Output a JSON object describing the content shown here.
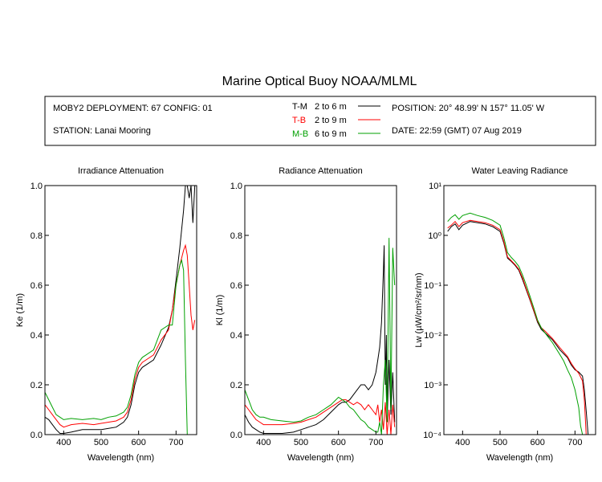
{
  "title": "Marine Optical Buoy NOAA/MLML",
  "info": {
    "deployment": "MOBY2 DEPLOYMENT: 67 CONFIG: 01",
    "station": "STATION: Lanai Mooring",
    "position": "POSITION: 20° 48.99' N   157° 11.05' W",
    "date": "DATE: 22:59 (GMT) 07 Aug 2019"
  },
  "legend": [
    {
      "key": "T-M",
      "range": "2 to 6  m",
      "color": "#000000"
    },
    {
      "key": "T-B",
      "range": "2 to 9  m",
      "color": "#ff0000"
    },
    {
      "key": "M-B",
      "range": "6 to 9  m",
      "color": "#00a000"
    }
  ],
  "chart_data": [
    {
      "type": "line",
      "title": "Irradiance Attenuation",
      "xlabel": "Wavelength (nm)",
      "ylabel": "Ke  (1/m)",
      "xlim": [
        350,
        755
      ],
      "ylim": [
        0,
        1
      ],
      "xticks": [
        400,
        500,
        600,
        700
      ],
      "yticks": [
        0,
        0.2,
        0.4,
        0.6,
        0.8,
        1.0
      ],
      "yticklabels": [
        "0.0",
        "0.2",
        "0.4",
        "0.6",
        "0.8",
        "1.0"
      ],
      "series": [
        {
          "name": "T-M",
          "color": "#000000",
          "x": [
            350,
            360,
            370,
            380,
            390,
            400,
            420,
            450,
            480,
            500,
            520,
            540,
            560,
            570,
            580,
            590,
            600,
            610,
            620,
            640,
            660,
            680,
            690,
            700,
            710,
            720,
            725,
            730,
            735,
            740,
            745,
            750
          ],
          "y": [
            0.07,
            0.06,
            0.04,
            0.02,
            0.005,
            0.005,
            0.01,
            0.02,
            0.02,
            0.02,
            0.025,
            0.03,
            0.05,
            0.07,
            0.12,
            0.2,
            0.25,
            0.27,
            0.28,
            0.3,
            0.36,
            0.43,
            0.5,
            0.62,
            0.75,
            0.9,
            1.0,
            1.0,
            0.95,
            1.0,
            0.85,
            1.0
          ]
        },
        {
          "name": "T-B",
          "color": "#ff0000",
          "x": [
            350,
            360,
            370,
            380,
            390,
            400,
            420,
            450,
            480,
            500,
            520,
            540,
            560,
            570,
            580,
            590,
            600,
            610,
            620,
            640,
            660,
            680,
            690,
            700,
            710,
            720,
            725,
            730,
            735,
            740,
            745,
            750
          ],
          "y": [
            0.12,
            0.1,
            0.08,
            0.06,
            0.04,
            0.03,
            0.04,
            0.045,
            0.04,
            0.045,
            0.05,
            0.055,
            0.07,
            0.09,
            0.14,
            0.22,
            0.27,
            0.29,
            0.3,
            0.32,
            0.38,
            0.42,
            0.5,
            0.6,
            0.68,
            0.74,
            0.76,
            0.72,
            0.6,
            0.48,
            0.42,
            0.46
          ]
        },
        {
          "name": "M-B",
          "color": "#00a000",
          "x": [
            350,
            360,
            370,
            380,
            390,
            400,
            420,
            450,
            480,
            500,
            520,
            540,
            560,
            570,
            580,
            590,
            600,
            610,
            620,
            640,
            660,
            680,
            690,
            700,
            710,
            715,
            720,
            725,
            730,
            735,
            740,
            745,
            750
          ],
          "y": [
            0.17,
            0.14,
            0.11,
            0.08,
            0.07,
            0.06,
            0.065,
            0.06,
            0.065,
            0.06,
            0.07,
            0.075,
            0.09,
            0.11,
            0.16,
            0.24,
            0.29,
            0.31,
            0.32,
            0.34,
            0.42,
            0.44,
            0.44,
            0.6,
            0.68,
            0.7,
            0.66,
            0.3,
            0.0,
            0.0,
            0.0,
            0.0,
            0.0
          ]
        }
      ]
    },
    {
      "type": "line",
      "title": "Radiance Attenuation",
      "xlabel": "Wavelength (nm)",
      "ylabel": "Kl  (1/m)",
      "xlim": [
        350,
        755
      ],
      "ylim": [
        0,
        1
      ],
      "xticks": [
        400,
        500,
        600,
        700
      ],
      "yticks": [
        0,
        0.2,
        0.4,
        0.6,
        0.8,
        1.0
      ],
      "yticklabels": [
        "0.0",
        "0.2",
        "0.4",
        "0.6",
        "0.8",
        "1.0"
      ],
      "series": [
        {
          "name": "T-M",
          "color": "#000000",
          "x": [
            350,
            360,
            370,
            380,
            390,
            400,
            420,
            450,
            480,
            500,
            520,
            540,
            560,
            580,
            600,
            610,
            620,
            630,
            640,
            650,
            660,
            670,
            680,
            690,
            700,
            705,
            710,
            715,
            720,
            722,
            725,
            728,
            730,
            735,
            740,
            745,
            750
          ],
          "y": [
            0.08,
            0.05,
            0.03,
            0.02,
            0.01,
            0.005,
            0.005,
            0.005,
            0.01,
            0.02,
            0.03,
            0.04,
            0.06,
            0.09,
            0.12,
            0.13,
            0.13,
            0.14,
            0.16,
            0.18,
            0.2,
            0.2,
            0.18,
            0.2,
            0.25,
            0.3,
            0.35,
            0.45,
            0.66,
            0.76,
            0.2,
            0.4,
            0.05,
            0.3,
            0.08,
            0.25,
            0.05
          ]
        },
        {
          "name": "T-B",
          "color": "#ff0000",
          "x": [
            350,
            360,
            370,
            380,
            390,
            400,
            420,
            450,
            480,
            500,
            520,
            540,
            560,
            580,
            600,
            610,
            620,
            630,
            640,
            650,
            660,
            670,
            680,
            690,
            700,
            705,
            710,
            715,
            720,
            725,
            730,
            735,
            740,
            745,
            750
          ],
          "y": [
            0.12,
            0.1,
            0.08,
            0.06,
            0.05,
            0.04,
            0.04,
            0.04,
            0.045,
            0.05,
            0.06,
            0.07,
            0.09,
            0.11,
            0.13,
            0.14,
            0.14,
            0.13,
            0.12,
            0.13,
            0.12,
            0.1,
            0.12,
            0.1,
            0.08,
            0.12,
            0.05,
            0.1,
            0.02,
            0.13,
            0.0,
            0.1,
            0.0,
            0.12,
            0.03
          ]
        },
        {
          "name": "M-B",
          "color": "#00a000",
          "x": [
            350,
            360,
            370,
            380,
            390,
            400,
            420,
            450,
            480,
            500,
            520,
            540,
            560,
            580,
            600,
            610,
            620,
            630,
            640,
            650,
            660,
            670,
            680,
            690,
            700,
            705,
            710,
            715,
            720,
            725,
            730,
            735,
            740,
            745,
            750
          ],
          "y": [
            0.18,
            0.14,
            0.1,
            0.08,
            0.07,
            0.07,
            0.06,
            0.055,
            0.05,
            0.055,
            0.07,
            0.08,
            0.1,
            0.12,
            0.15,
            0.14,
            0.13,
            0.11,
            0.1,
            0.08,
            0.06,
            0.05,
            0.03,
            0.02,
            0.01,
            0.01,
            0.05,
            0.0,
            0.2,
            0.3,
            0.05,
            0.79,
            0.1,
            0.75,
            0.6
          ]
        }
      ]
    },
    {
      "type": "line",
      "title": "Water Leaving Radiance",
      "xlabel": "Wavelength (nm)",
      "ylabel": "Lw  (µW/cm²/sr/nm)",
      "xlim": [
        350,
        755
      ],
      "ylim": [
        0.0001,
        10
      ],
      "yscale": "log",
      "xticks": [
        400,
        500,
        600,
        700
      ],
      "yticks": [
        0.0001,
        0.001,
        0.01,
        0.1,
        1,
        10
      ],
      "yticklabels": [
        "10⁻⁴",
        "10⁻³",
        "10⁻²",
        "10⁻¹",
        "10⁰",
        "10¹"
      ],
      "series": [
        {
          "name": "T-M",
          "color": "#000000",
          "x": [
            360,
            370,
            380,
            390,
            400,
            420,
            440,
            460,
            480,
            500,
            510,
            520,
            530,
            540,
            550,
            560,
            570,
            580,
            590,
            600,
            610,
            620,
            640,
            660,
            680,
            690,
            700,
            710,
            720,
            725,
            730,
            735
          ],
          "y": [
            1.2,
            1.5,
            1.7,
            1.3,
            1.6,
            1.9,
            1.8,
            1.7,
            1.5,
            1.2,
            0.7,
            0.35,
            0.3,
            0.25,
            0.2,
            0.13,
            0.08,
            0.05,
            0.03,
            0.018,
            0.013,
            0.011,
            0.008,
            0.005,
            0.0035,
            0.0025,
            0.002,
            0.0018,
            0.0015,
            0.0008,
            0.0003,
            0.0001
          ]
        },
        {
          "name": "T-B",
          "color": "#ff0000",
          "x": [
            360,
            370,
            380,
            390,
            400,
            420,
            440,
            460,
            480,
            500,
            510,
            520,
            530,
            540,
            550,
            560,
            570,
            580,
            590,
            600,
            610,
            620,
            640,
            660,
            680,
            690,
            700,
            710,
            720,
            725,
            730
          ],
          "y": [
            1.4,
            1.6,
            1.9,
            1.5,
            1.8,
            2.0,
            1.9,
            1.8,
            1.6,
            1.3,
            0.75,
            0.37,
            0.31,
            0.26,
            0.21,
            0.14,
            0.085,
            0.052,
            0.031,
            0.019,
            0.014,
            0.012,
            0.0085,
            0.0055,
            0.0037,
            0.0027,
            0.0021,
            0.0017,
            0.0012,
            0.0005,
            0.0001
          ]
        },
        {
          "name": "M-B",
          "color": "#00a000",
          "x": [
            360,
            370,
            380,
            390,
            400,
            420,
            440,
            460,
            480,
            500,
            510,
            520,
            530,
            540,
            550,
            560,
            570,
            580,
            590,
            600,
            610,
            620,
            640,
            660,
            670,
            680,
            690,
            700,
            710,
            715,
            720
          ],
          "y": [
            1.9,
            2.3,
            2.6,
            2.1,
            2.5,
            2.8,
            2.5,
            2.3,
            2.0,
            1.6,
            0.9,
            0.45,
            0.36,
            0.3,
            0.24,
            0.16,
            0.1,
            0.06,
            0.035,
            0.02,
            0.014,
            0.011,
            0.007,
            0.004,
            0.003,
            0.002,
            0.0014,
            0.0008,
            0.00035,
            0.00015,
            0.0001
          ]
        }
      ]
    }
  ]
}
